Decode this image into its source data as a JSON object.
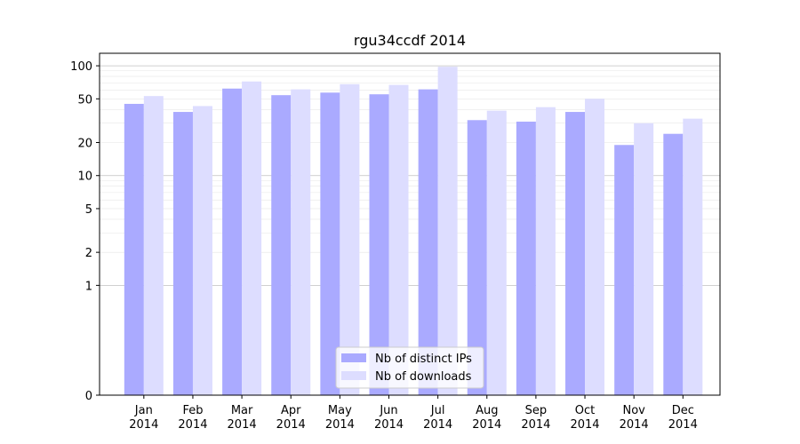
{
  "chart_data": {
    "type": "bar",
    "title": "rgu34ccdf 2014",
    "xlabel": "",
    "ylabel": "",
    "scale": "symlog",
    "categories": [
      [
        "Jan",
        "2014"
      ],
      [
        "Feb",
        "2014"
      ],
      [
        "Mar",
        "2014"
      ],
      [
        "Apr",
        "2014"
      ],
      [
        "May",
        "2014"
      ],
      [
        "Jun",
        "2014"
      ],
      [
        "Jul",
        "2014"
      ],
      [
        "Aug",
        "2014"
      ],
      [
        "Sep",
        "2014"
      ],
      [
        "Oct",
        "2014"
      ],
      [
        "Nov",
        "2014"
      ],
      [
        "Dec",
        "2014"
      ]
    ],
    "series": [
      {
        "name": "Nb of distinct IPs",
        "color": "#aaaaff",
        "values": [
          45,
          38,
          62,
          54,
          57,
          55,
          61,
          32,
          31,
          38,
          19,
          24
        ]
      },
      {
        "name": "Nb of downloads",
        "color": "#ddddff",
        "values": [
          53,
          43,
          72,
          61,
          68,
          67,
          98,
          39,
          42,
          50,
          30,
          33
        ]
      }
    ],
    "yticks": [
      0,
      1,
      2,
      5,
      10,
      20,
      50,
      100
    ],
    "ylim": [
      0,
      130
    ],
    "grid": true,
    "legend_position": "bottom-center"
  }
}
